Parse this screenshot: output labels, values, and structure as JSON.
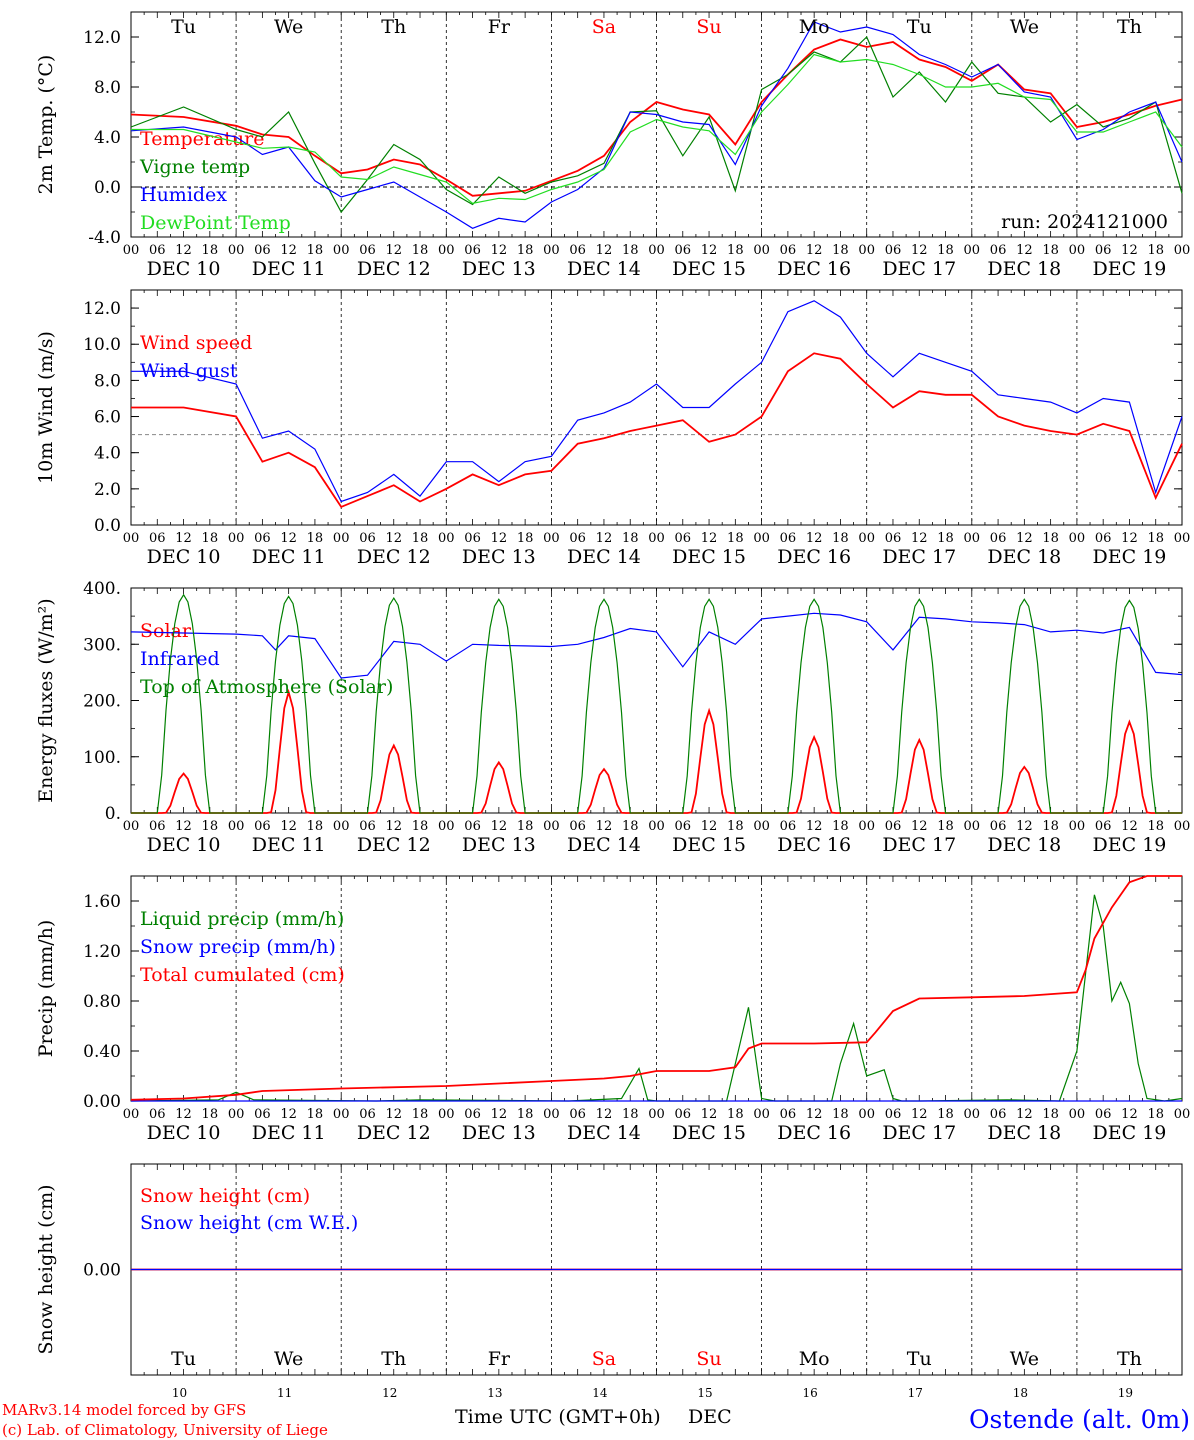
{
  "meta": {
    "run_label": "run: 2024121000",
    "model_line1": "MARv3.14 model forced by GFS",
    "model_line2": "(c) Lab. of Climatology, University of Liege",
    "x_axis_title": "Time UTC (GMT+0h)",
    "month_label": "DEC",
    "station": "Ostende (alt. 0m)"
  },
  "colors": {
    "red": "#ff0000",
    "green": "#008000",
    "blue": "#0000ff",
    "light_green": "#22dd22",
    "axis": "#000000",
    "grid": "#888888"
  },
  "days": {
    "weekdays": [
      "Tu",
      "We",
      "Th",
      "Fr",
      "Sa",
      "Su",
      "Mo",
      "Tu",
      "We",
      "Th"
    ],
    "weekend_flags": [
      false,
      false,
      false,
      false,
      true,
      true,
      false,
      false,
      false,
      false
    ],
    "date_labels": [
      "DEC 10",
      "DEC 11",
      "DEC 12",
      "DEC 13",
      "DEC 14",
      "DEC 15",
      "DEC 16",
      "DEC 17",
      "DEC 18",
      "DEC 19"
    ],
    "day_numbers": [
      "10",
      "11",
      "12",
      "13",
      "14",
      "15",
      "16",
      "17",
      "18",
      "19"
    ],
    "hour_ticks": [
      "00",
      "06",
      "12",
      "18"
    ],
    "end_tick": "00"
  },
  "chart_data": [
    {
      "type": "line",
      "id": "temperature",
      "ylabel": "2m Temp. (°C)",
      "ylim": [
        -4,
        14
      ],
      "yticks": [
        "-4.0",
        "0.0",
        "4.0",
        "8.0",
        "12.0"
      ],
      "ytick_values": [
        -4,
        0,
        4,
        8,
        12
      ],
      "ref_line": 0,
      "x_unit": "hours since DEC 10 00 UTC",
      "series": [
        {
          "name": "Temperature",
          "color": "red",
          "x": [
            0,
            12,
            24,
            30,
            36,
            42,
            48,
            54,
            60,
            66,
            72,
            78,
            84,
            90,
            96,
            102,
            108,
            114,
            120,
            126,
            132,
            138,
            144,
            150,
            156,
            162,
            168,
            174,
            180,
            186,
            192,
            198,
            204,
            210,
            216,
            222,
            228,
            234,
            240
          ],
          "y": [
            5.8,
            5.6,
            4.9,
            4.2,
            4.0,
            2.5,
            1.1,
            1.4,
            2.2,
            1.8,
            0.6,
            -0.7,
            -0.5,
            -0.3,
            0.5,
            1.3,
            2.5,
            5.2,
            6.8,
            6.2,
            5.8,
            3.4,
            6.8,
            9.0,
            11.0,
            11.8,
            11.2,
            11.6,
            10.2,
            9.6,
            8.5,
            9.8,
            7.8,
            7.5,
            4.8,
            5.2,
            5.8,
            6.5,
            7.0
          ]
        },
        {
          "name": "Vigne temp",
          "color": "green",
          "x": [
            0,
            12,
            24,
            30,
            36,
            42,
            48,
            54,
            60,
            66,
            72,
            78,
            84,
            90,
            96,
            102,
            108,
            114,
            120,
            126,
            132,
            138,
            144,
            150,
            156,
            162,
            168,
            174,
            180,
            186,
            192,
            198,
            204,
            210,
            216,
            222,
            228,
            234,
            240
          ],
          "y": [
            4.8,
            6.4,
            4.6,
            4.0,
            6.0,
            1.9,
            -2.0,
            0.6,
            3.4,
            2.2,
            -0.2,
            -1.4,
            0.8,
            -0.5,
            0.4,
            0.9,
            1.9,
            6.0,
            6.1,
            2.5,
            5.6,
            -0.3,
            7.8,
            9.0,
            10.8,
            10.0,
            12.0,
            7.2,
            9.2,
            6.8,
            10.0,
            7.5,
            7.2,
            5.2,
            6.6,
            4.8,
            5.5,
            6.8,
            -0.5
          ]
        },
        {
          "name": "Humidex",
          "color": "blue",
          "x": [
            0,
            12,
            24,
            30,
            36,
            42,
            48,
            54,
            60,
            66,
            72,
            78,
            84,
            90,
            96,
            102,
            108,
            114,
            120,
            126,
            132,
            138,
            144,
            150,
            156,
            162,
            168,
            174,
            180,
            186,
            192,
            198,
            204,
            210,
            216,
            222,
            228,
            234,
            240
          ],
          "y": [
            4.5,
            4.8,
            4.0,
            2.6,
            3.2,
            0.5,
            -0.8,
            -0.2,
            0.4,
            -0.8,
            -2.0,
            -3.3,
            -2.5,
            -2.8,
            -1.2,
            -0.2,
            1.5,
            6.0,
            5.8,
            5.2,
            5.0,
            1.8,
            6.5,
            9.5,
            13.2,
            12.4,
            12.8,
            12.2,
            10.6,
            9.8,
            8.8,
            9.8,
            7.6,
            7.2,
            3.8,
            4.6,
            6.0,
            6.8,
            2.0
          ]
        },
        {
          "name": "DewPoint Temp",
          "color": "light_green",
          "x": [
            0,
            12,
            24,
            30,
            36,
            42,
            48,
            54,
            60,
            66,
            72,
            78,
            84,
            90,
            96,
            102,
            108,
            114,
            120,
            126,
            132,
            138,
            144,
            150,
            156,
            162,
            168,
            174,
            180,
            186,
            192,
            198,
            204,
            210,
            216,
            222,
            228,
            234,
            240
          ],
          "y": [
            4.6,
            4.6,
            3.6,
            3.1,
            3.2,
            2.8,
            0.8,
            0.6,
            1.6,
            1.0,
            0.4,
            -1.3,
            -0.9,
            -1.0,
            -0.2,
            0.4,
            1.4,
            4.4,
            5.4,
            4.8,
            4.5,
            2.6,
            6.0,
            8.2,
            10.6,
            10.0,
            10.2,
            9.8,
            9.0,
            8.0,
            8.0,
            8.3,
            7.2,
            7.0,
            4.4,
            4.4,
            5.2,
            6.0,
            3.2
          ]
        }
      ]
    },
    {
      "type": "line",
      "id": "wind",
      "ylabel": "10m Wind (m/s)",
      "ylim": [
        0,
        13
      ],
      "yticks": [
        "0.0",
        "2.0",
        "4.0",
        "6.0",
        "8.0",
        "10.0",
        "12.0"
      ],
      "ytick_values": [
        0,
        2,
        4,
        6,
        8,
        10,
        12
      ],
      "ref_line": 5,
      "x_unit": "hours since DEC 10 00 UTC",
      "series": [
        {
          "name": "Wind speed",
          "color": "red",
          "x": [
            0,
            12,
            24,
            30,
            36,
            42,
            48,
            54,
            60,
            66,
            72,
            78,
            84,
            90,
            96,
            102,
            108,
            114,
            120,
            126,
            132,
            138,
            144,
            150,
            156,
            162,
            168,
            174,
            180,
            186,
            192,
            198,
            204,
            210,
            216,
            222,
            228,
            234,
            240
          ],
          "y": [
            6.5,
            6.5,
            6.0,
            3.5,
            4.0,
            3.2,
            1.0,
            1.6,
            2.2,
            1.3,
            2.0,
            2.8,
            2.2,
            2.8,
            3.0,
            4.5,
            4.8,
            5.2,
            5.5,
            5.8,
            4.6,
            5.0,
            6.0,
            8.5,
            9.5,
            9.2,
            7.8,
            6.5,
            7.4,
            7.2,
            7.2,
            6.0,
            5.5,
            5.2,
            5.0,
            5.6,
            5.2,
            1.5,
            4.5
          ]
        },
        {
          "name": "Wind gust",
          "color": "blue",
          "x": [
            0,
            12,
            24,
            30,
            36,
            42,
            48,
            54,
            60,
            66,
            72,
            78,
            84,
            90,
            96,
            102,
            108,
            114,
            120,
            126,
            132,
            138,
            144,
            150,
            156,
            162,
            168,
            174,
            180,
            186,
            192,
            198,
            204,
            210,
            216,
            222,
            228,
            234,
            240
          ],
          "y": [
            8.5,
            8.5,
            7.8,
            4.8,
            5.2,
            4.2,
            1.3,
            1.8,
            2.8,
            1.6,
            3.5,
            3.5,
            2.4,
            3.5,
            3.8,
            5.8,
            6.2,
            6.8,
            7.8,
            6.5,
            6.5,
            7.8,
            9.0,
            11.8,
            12.4,
            11.5,
            9.5,
            8.2,
            9.5,
            9.0,
            8.5,
            7.2,
            7.0,
            6.8,
            6.2,
            7.0,
            6.8,
            1.8,
            6.0
          ]
        }
      ]
    },
    {
      "type": "line",
      "id": "energy",
      "ylabel": "Energy fluxes (W/m²)",
      "ylim": [
        0,
        400
      ],
      "yticks": [
        "0.",
        "100.",
        "200.",
        "300.",
        "400."
      ],
      "ytick_values": [
        0,
        100,
        200,
        300,
        400
      ],
      "x_unit": "hours since DEC 10 00 UTC",
      "series": [
        {
          "name": "Solar",
          "color": "red",
          "daily_peak_hour": 12,
          "daily_peaks": [
            70,
            215,
            120,
            90,
            78,
            182,
            135,
            130,
            82,
            162
          ]
        },
        {
          "name": "Infrared",
          "color": "blue",
          "x": [
            0,
            12,
            24,
            30,
            33,
            36,
            42,
            48,
            54,
            60,
            66,
            72,
            78,
            84,
            90,
            96,
            102,
            108,
            114,
            120,
            126,
            132,
            138,
            144,
            150,
            156,
            162,
            168,
            174,
            180,
            186,
            192,
            198,
            204,
            210,
            216,
            222,
            228,
            234,
            240
          ],
          "y": [
            322,
            320,
            318,
            315,
            290,
            315,
            310,
            240,
            245,
            305,
            300,
            270,
            300,
            298,
            297,
            296,
            300,
            312,
            328,
            322,
            260,
            322,
            300,
            345,
            350,
            355,
            352,
            340,
            290,
            348,
            345,
            340,
            338,
            335,
            322,
            325,
            320,
            330,
            250,
            246
          ]
        },
        {
          "name": "Top of Atmosphere (Solar)",
          "color": "green",
          "daily_peak_hour": 12,
          "daily_peaks": [
            388,
            385,
            382,
            380,
            380,
            380,
            380,
            380,
            380,
            378
          ]
        }
      ]
    },
    {
      "type": "line",
      "id": "precip",
      "ylabel": "Precip (mm/h)",
      "ylim": [
        0,
        1.8
      ],
      "yticks": [
        "0.00",
        "0.40",
        "0.80",
        "1.20",
        "1.60"
      ],
      "ytick_values": [
        0,
        0.4,
        0.8,
        1.2,
        1.6
      ],
      "x_unit": "hours since DEC 10 00 UTC",
      "series": [
        {
          "name": "Liquid precip (mm/h)",
          "color": "green",
          "x": [
            0,
            20,
            24,
            28,
            56,
            66,
            100,
            112,
            116,
            118,
            120,
            136,
            141,
            144,
            147,
            150,
            160,
            162,
            165,
            168,
            172,
            174,
            176,
            180,
            200,
            212,
            216,
            220,
            222,
            224,
            226,
            228,
            230,
            232,
            236,
            240
          ],
          "y": [
            0,
            0.01,
            0.07,
            0.01,
            0,
            0.01,
            0,
            0.02,
            0.26,
            0.01,
            0,
            0,
            0.75,
            0.02,
            0,
            0,
            0,
            0.3,
            0.62,
            0.2,
            0.25,
            0.02,
            0,
            0,
            0.01,
            0,
            0.4,
            1.65,
            1.4,
            0.8,
            0.95,
            0.78,
            0.3,
            0.02,
            0,
            0.02
          ]
        },
        {
          "name": "Snow precip (mm/h)",
          "color": "blue",
          "x": [
            0,
            240
          ],
          "y": [
            0,
            0
          ]
        },
        {
          "name": "Total cumulated (cm)",
          "color": "red",
          "x": [
            0,
            12,
            24,
            30,
            48,
            72,
            96,
            108,
            114,
            120,
            132,
            138,
            141,
            144,
            156,
            168,
            170,
            174,
            180,
            192,
            204,
            216,
            218,
            220,
            224,
            228,
            232,
            240
          ],
          "y": [
            0.01,
            0.02,
            0.05,
            0.08,
            0.1,
            0.12,
            0.16,
            0.18,
            0.2,
            0.24,
            0.24,
            0.27,
            0.42,
            0.46,
            0.46,
            0.47,
            0.55,
            0.72,
            0.82,
            0.83,
            0.84,
            0.87,
            1.05,
            1.3,
            1.55,
            1.75,
            1.8,
            1.8
          ]
        }
      ]
    },
    {
      "type": "line",
      "id": "snow",
      "ylabel": "Snow height (cm)",
      "ylim": [
        -1,
        1
      ],
      "yticks": [
        "0.00"
      ],
      "ytick_values": [
        0
      ],
      "x_unit": "hours since DEC 10 00 UTC",
      "series": [
        {
          "name": "Snow height (cm)",
          "color": "red",
          "x": [
            0,
            240
          ],
          "y": [
            0,
            0
          ]
        },
        {
          "name": "Snow height (cm W.E.)",
          "color": "blue",
          "x": [
            0,
            240
          ],
          "y": [
            0,
            0
          ]
        }
      ]
    }
  ]
}
